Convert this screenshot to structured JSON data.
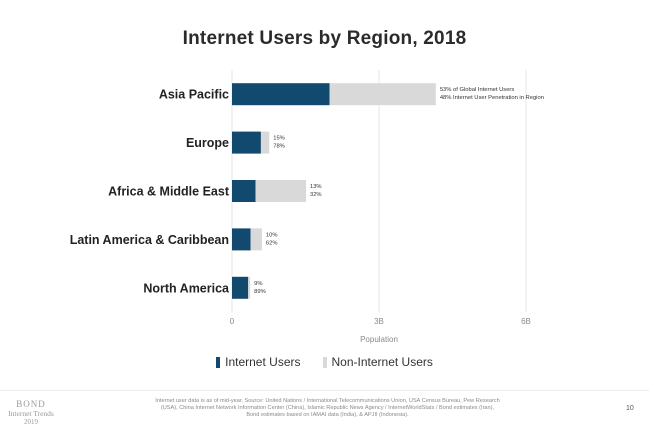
{
  "colors": {
    "internet": "#12496e",
    "non_internet": "#d9d9d9",
    "grid": "#e6e6e6"
  },
  "chart_data": {
    "type": "bar",
    "orientation": "horizontal",
    "stacked": true,
    "title": "Internet Users by Region, 2018",
    "xlabel": "Population",
    "ylabel": "",
    "xlim": [
      0,
      6
    ],
    "x_ticks": [
      0,
      3,
      6
    ],
    "x_tick_labels": [
      "0",
      "3B",
      "6B"
    ],
    "grid": true,
    "legend_position": "bottom",
    "categories": [
      "Asia Pacific",
      "Europe",
      "Africa & Middle East",
      "Latin America & Caribbean",
      "North America"
    ],
    "series": [
      {
        "name": "Internet Users",
        "values": [
          1.99,
          0.59,
          0.48,
          0.38,
          0.33
        ]
      },
      {
        "name": "Non-Internet Users",
        "values": [
          2.17,
          0.17,
          1.03,
          0.23,
          0.04
        ]
      }
    ],
    "annotations": [
      [
        "53% of Global Internet Users",
        "48% Internet User Penetration in Region"
      ],
      [
        "15%",
        "78%"
      ],
      [
        "13%",
        "32%"
      ],
      [
        "10%",
        "62%"
      ],
      [
        "9%",
        "89%"
      ]
    ]
  },
  "footer": {
    "logo_line1": "BOND",
    "logo_line2": "Internet Trends",
    "logo_line3": "2019",
    "note": "Internet user data is as of mid-year. Source: United Nations / International Telecommunications Union, USA Census Bureau, Pew Research (USA), China Internet Network Information Center (China), Islamic Republic News Agency / InternetWorldStats / Bond estimates (Iran), Bond estimates based on IAMAI data (India), & APJII (Indonesia).",
    "page_number": "10"
  }
}
